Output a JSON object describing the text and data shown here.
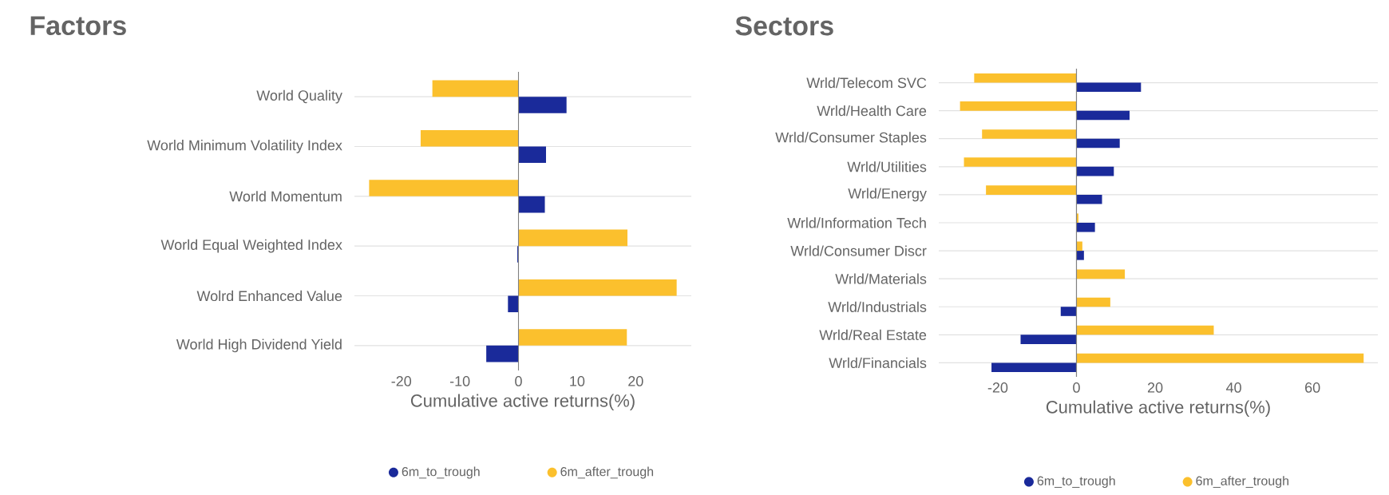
{
  "chart_data": [
    {
      "type": "bar",
      "orientation": "horizontal",
      "title": "Factors",
      "xlabel": "Cumulative active returns(%)",
      "categories": [
        "World Quality",
        "World Minimum Volatility Index",
        "World Momentum",
        "World Equal Weighted Index",
        "Wolrd Enhanced Value",
        "World High Dividend Yield"
      ],
      "series": [
        {
          "name": "6m_to_trough",
          "color": "#1a2a9a",
          "values": [
            8.2,
            4.7,
            4.5,
            -0.2,
            -1.8,
            -5.5
          ]
        },
        {
          "name": "6m_after_trough",
          "color": "#fbc02d",
          "values": [
            -14.7,
            -16.7,
            -25.5,
            18.6,
            27,
            18.5
          ]
        }
      ],
      "xlim": [
        -28,
        29.5
      ],
      "xticks": [
        -20,
        -10,
        0,
        10,
        20
      ],
      "grid": "y",
      "legend": "bottom"
    },
    {
      "type": "bar",
      "orientation": "horizontal",
      "title": "Sectors",
      "xlabel": "Cumulative active returns(%)",
      "categories": [
        "Wrld/Telecom SVC",
        "Wrld/Health Care",
        "Wrld/Consumer Staples",
        "Wrld/Utilities",
        "Wrld/Energy",
        "Wrld/Information Tech",
        "Wrld/Consumer Discr",
        "Wrld/Materials",
        "Wrld/Industrials",
        "Wrld/Real Estate",
        "Wrld/Financials"
      ],
      "series": [
        {
          "name": "6m_to_trough",
          "color": "#1a2a9a",
          "values": [
            16.4,
            13.5,
            11,
            9.5,
            6.5,
            4.7,
            1.9,
            0,
            -4,
            -14.2,
            -21.6
          ]
        },
        {
          "name": "6m_after_trough",
          "color": "#fbc02d",
          "values": [
            -26,
            -29.6,
            -24,
            -28.6,
            -23,
            0.5,
            1.5,
            12.3,
            8.6,
            34.9,
            73
          ]
        }
      ],
      "xlim": [
        -35,
        76.6
      ],
      "xticks": [
        -20,
        0,
        20,
        40,
        60
      ],
      "grid": "y",
      "legend": "bottom"
    }
  ]
}
